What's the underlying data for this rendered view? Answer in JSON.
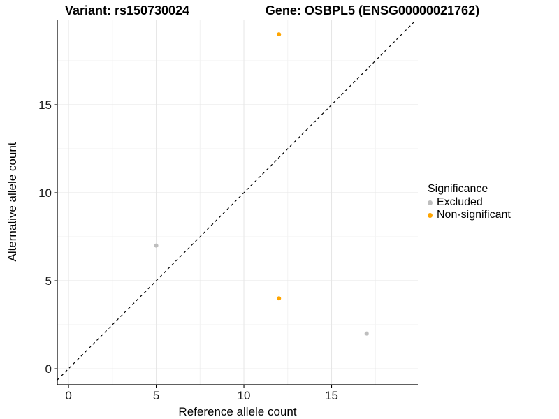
{
  "chart_data": {
    "type": "scatter",
    "title_left": "Variant: rs150730024",
    "title_right": "Gene: OSBPL5 (ENSG00000021762)",
    "xlabel": "Reference allele count",
    "ylabel": "Alternative allele count",
    "xlim": [
      -0.64,
      19.92
    ],
    "ylim": [
      -0.91,
      19.84
    ],
    "x_ticks": [
      0,
      5,
      10,
      15
    ],
    "y_ticks": [
      0,
      5,
      10,
      15
    ],
    "x_minor_ticks": [
      2.5,
      7.5,
      12.5,
      17.5
    ],
    "y_minor_ticks": [
      2.5,
      7.5,
      12.5,
      17.5
    ],
    "grid": "on",
    "identity_line": {
      "slope": 1,
      "intercept": 0,
      "style": "dashed",
      "color": "#000000"
    },
    "series": [
      {
        "name": "Excluded",
        "color": "#BEBEBE",
        "points": [
          {
            "x": 5,
            "y": 7
          },
          {
            "x": 17,
            "y": 2
          }
        ]
      },
      {
        "name": "Non-significant",
        "color": "#FFA500",
        "points": [
          {
            "x": 12,
            "y": 19
          },
          {
            "x": 12,
            "y": 4
          }
        ]
      }
    ],
    "legend": {
      "title": "Significance",
      "position": "right"
    }
  }
}
